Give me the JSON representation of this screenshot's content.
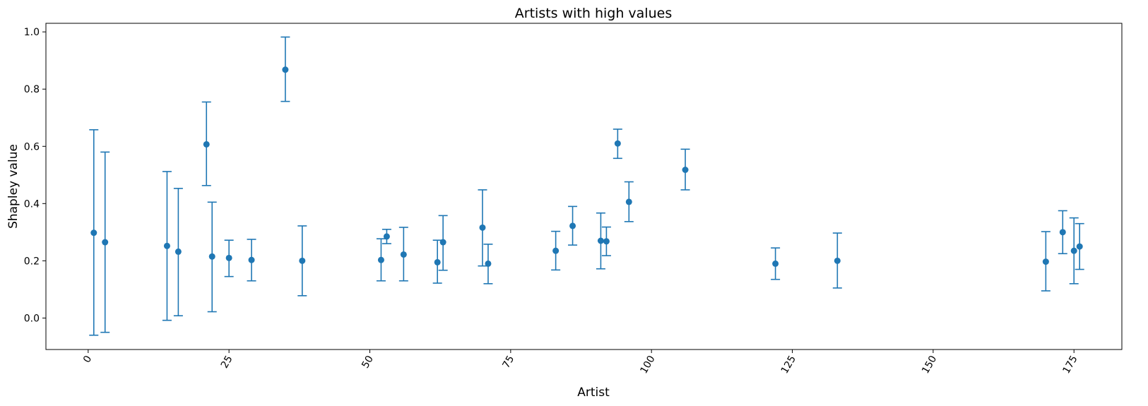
{
  "chart_data": {
    "type": "scatter",
    "title": "Artists with high values",
    "xlabel": "Artist",
    "ylabel": "Shapley value",
    "xlim": [
      -7.5,
      183.5
    ],
    "ylim": [
      -0.11,
      1.03
    ],
    "xticks": [
      0,
      25,
      50,
      75,
      100,
      125,
      150,
      175
    ],
    "yticks": [
      0.0,
      0.2,
      0.4,
      0.6,
      0.8,
      1.0
    ],
    "xtick_rotation": 60,
    "grid": false,
    "color": "#1f77b4",
    "series": [
      {
        "points": [
          {
            "x": 1,
            "y": 0.298,
            "lo": -0.06,
            "hi": 0.658
          },
          {
            "x": 3,
            "y": 0.265,
            "lo": -0.05,
            "hi": 0.58
          },
          {
            "x": 14,
            "y": 0.252,
            "lo": -0.008,
            "hi": 0.512
          },
          {
            "x": 16,
            "y": 0.232,
            "lo": 0.008,
            "hi": 0.453
          },
          {
            "x": 21,
            "y": 0.607,
            "lo": 0.463,
            "hi": 0.755
          },
          {
            "x": 22,
            "y": 0.215,
            "lo": 0.022,
            "hi": 0.405
          },
          {
            "x": 25,
            "y": 0.21,
            "lo": 0.145,
            "hi": 0.272
          },
          {
            "x": 29,
            "y": 0.203,
            "lo": 0.13,
            "hi": 0.275
          },
          {
            "x": 35,
            "y": 0.868,
            "lo": 0.757,
            "hi": 0.982
          },
          {
            "x": 38,
            "y": 0.2,
            "lo": 0.078,
            "hi": 0.322
          },
          {
            "x": 52,
            "y": 0.203,
            "lo": 0.13,
            "hi": 0.277
          },
          {
            "x": 53,
            "y": 0.285,
            "lo": 0.26,
            "hi": 0.31
          },
          {
            "x": 56,
            "y": 0.222,
            "lo": 0.13,
            "hi": 0.317
          },
          {
            "x": 62,
            "y": 0.195,
            "lo": 0.122,
            "hi": 0.272
          },
          {
            "x": 63,
            "y": 0.265,
            "lo": 0.167,
            "hi": 0.358
          },
          {
            "x": 70,
            "y": 0.316,
            "lo": 0.182,
            "hi": 0.448
          },
          {
            "x": 71,
            "y": 0.19,
            "lo": 0.12,
            "hi": 0.258
          },
          {
            "x": 83,
            "y": 0.235,
            "lo": 0.168,
            "hi": 0.303
          },
          {
            "x": 86,
            "y": 0.322,
            "lo": 0.255,
            "hi": 0.39
          },
          {
            "x": 91,
            "y": 0.27,
            "lo": 0.172,
            "hi": 0.367
          },
          {
            "x": 92,
            "y": 0.268,
            "lo": 0.218,
            "hi": 0.318
          },
          {
            "x": 94,
            "y": 0.61,
            "lo": 0.558,
            "hi": 0.66
          },
          {
            "x": 96,
            "y": 0.406,
            "lo": 0.337,
            "hi": 0.476
          },
          {
            "x": 106,
            "y": 0.518,
            "lo": 0.448,
            "hi": 0.59
          },
          {
            "x": 122,
            "y": 0.19,
            "lo": 0.135,
            "hi": 0.245
          },
          {
            "x": 133,
            "y": 0.2,
            "lo": 0.105,
            "hi": 0.297
          },
          {
            "x": 170,
            "y": 0.197,
            "lo": 0.095,
            "hi": 0.302
          },
          {
            "x": 173,
            "y": 0.3,
            "lo": 0.225,
            "hi": 0.375
          },
          {
            "x": 175,
            "y": 0.235,
            "lo": 0.12,
            "hi": 0.35
          },
          {
            "x": 176,
            "y": 0.25,
            "lo": 0.17,
            "hi": 0.33
          }
        ]
      }
    ]
  }
}
